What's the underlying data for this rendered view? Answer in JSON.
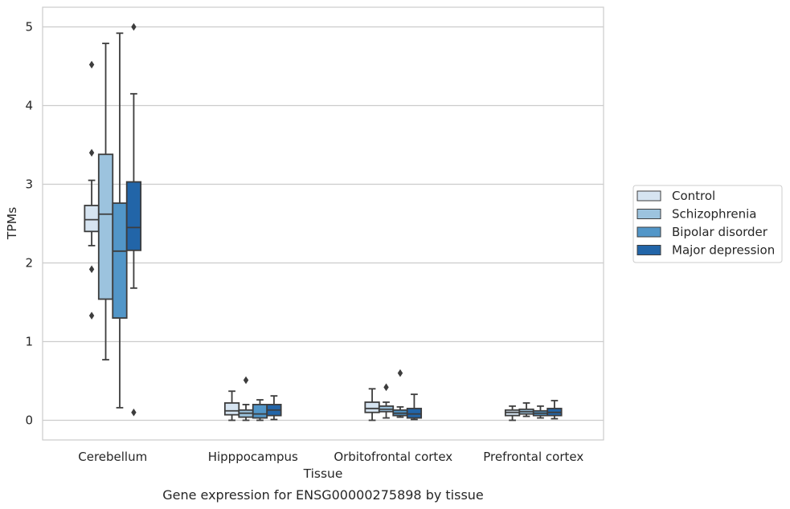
{
  "chart_data": {
    "type": "box",
    "title": "",
    "caption": "Gene expression for ENSG00000275898 by tissue",
    "xlabel": "Tissue",
    "ylabel": "TPMs",
    "ylim": [
      -0.25,
      5.25
    ],
    "yticks": [
      0,
      1,
      2,
      3,
      4,
      5
    ],
    "grid": "horizontal",
    "legend_position": "right",
    "categories": [
      "Cerebellum",
      "Hipppocampus",
      "Orbitofrontal cortex",
      "Prefrontal cortex"
    ],
    "series": [
      {
        "name": "Control",
        "color": "#d6e4f1",
        "boxes": [
          {
            "whisker_low": 2.22,
            "q1": 2.4,
            "median": 2.55,
            "q3": 2.73,
            "whisker_high": 3.05,
            "outliers": [
              4.52,
              3.4,
              1.92,
              1.33
            ]
          },
          {
            "whisker_low": 0.0,
            "q1": 0.07,
            "median": 0.12,
            "q3": 0.22,
            "whisker_high": 0.37,
            "outliers": []
          },
          {
            "whisker_low": 0.0,
            "q1": 0.1,
            "median": 0.15,
            "q3": 0.23,
            "whisker_high": 0.4,
            "outliers": []
          },
          {
            "whisker_low": 0.0,
            "q1": 0.06,
            "median": 0.1,
            "q3": 0.13,
            "whisker_high": 0.18,
            "outliers": []
          }
        ]
      },
      {
        "name": "Schizophrenia",
        "color": "#9cc3de",
        "boxes": [
          {
            "whisker_low": 0.77,
            "q1": 1.54,
            "median": 2.62,
            "q3": 3.38,
            "whisker_high": 4.79,
            "outliers": []
          },
          {
            "whisker_low": 0.0,
            "q1": 0.04,
            "median": 0.09,
            "q3": 0.13,
            "whisker_high": 0.2,
            "outliers": [
              0.51
            ]
          },
          {
            "whisker_low": 0.03,
            "q1": 0.11,
            "median": 0.14,
            "q3": 0.18,
            "whisker_high": 0.23,
            "outliers": [
              0.42
            ]
          },
          {
            "whisker_low": 0.05,
            "q1": 0.08,
            "median": 0.11,
            "q3": 0.14,
            "whisker_high": 0.22,
            "outliers": []
          }
        ]
      },
      {
        "name": "Bipolar disorder",
        "color": "#5296c8",
        "boxes": [
          {
            "whisker_low": 0.16,
            "q1": 1.3,
            "median": 2.15,
            "q3": 2.76,
            "whisker_high": 4.92,
            "outliers": []
          },
          {
            "whisker_low": 0.0,
            "q1": 0.03,
            "median": 0.08,
            "q3": 0.2,
            "whisker_high": 0.26,
            "outliers": []
          },
          {
            "whisker_low": 0.04,
            "q1": 0.06,
            "median": 0.09,
            "q3": 0.13,
            "whisker_high": 0.17,
            "outliers": [
              0.6
            ]
          },
          {
            "whisker_low": 0.03,
            "q1": 0.06,
            "median": 0.09,
            "q3": 0.12,
            "whisker_high": 0.18,
            "outliers": []
          }
        ]
      },
      {
        "name": "Major depression",
        "color": "#2265a8",
        "boxes": [
          {
            "whisker_low": 1.68,
            "q1": 2.16,
            "median": 2.45,
            "q3": 3.03,
            "whisker_high": 4.15,
            "outliers": [
              5.0,
              0.1
            ]
          },
          {
            "whisker_low": 0.01,
            "q1": 0.06,
            "median": 0.13,
            "q3": 0.2,
            "whisker_high": 0.31,
            "outliers": []
          },
          {
            "whisker_low": 0.01,
            "q1": 0.03,
            "median": 0.08,
            "q3": 0.15,
            "whisker_high": 0.33,
            "outliers": []
          },
          {
            "whisker_low": 0.02,
            "q1": 0.06,
            "median": 0.1,
            "q3": 0.15,
            "whisker_high": 0.25,
            "outliers": []
          }
        ]
      }
    ]
  }
}
